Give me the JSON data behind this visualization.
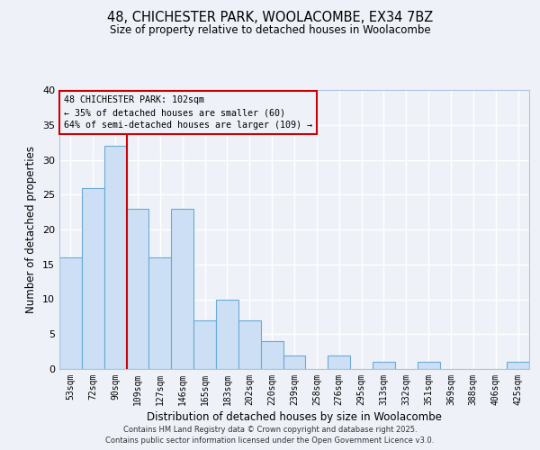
{
  "title": "48, CHICHESTER PARK, WOOLACOMBE, EX34 7BZ",
  "subtitle": "Size of property relative to detached houses in Woolacombe",
  "xlabel": "Distribution of detached houses by size in Woolacombe",
  "ylabel": "Number of detached properties",
  "bins": [
    "53sqm",
    "72sqm",
    "90sqm",
    "109sqm",
    "127sqm",
    "146sqm",
    "165sqm",
    "183sqm",
    "202sqm",
    "220sqm",
    "239sqm",
    "258sqm",
    "276sqm",
    "295sqm",
    "313sqm",
    "332sqm",
    "351sqm",
    "369sqm",
    "388sqm",
    "406sqm",
    "425sqm"
  ],
  "values": [
    16,
    26,
    32,
    23,
    16,
    23,
    7,
    10,
    7,
    4,
    2,
    0,
    2,
    0,
    1,
    0,
    1,
    0,
    0,
    0,
    1
  ],
  "bar_color": "#ccdff5",
  "bar_edge_color": "#6aaad4",
  "red_line_x": 2.5,
  "red_line_color": "#cc0000",
  "annotation_box_edge": "#cc0000",
  "ann_line0": "48 CHICHESTER PARK: 102sqm",
  "ann_line1": "← 35% of detached houses are smaller (60)",
  "ann_line2": "64% of semi-detached houses are larger (109) →",
  "ylim": [
    0,
    40
  ],
  "yticks": [
    0,
    5,
    10,
    15,
    20,
    25,
    30,
    35,
    40
  ],
  "bg_color": "#eef2f8",
  "grid_color": "#ffffff",
  "footer1": "Contains HM Land Registry data © Crown copyright and database right 2025.",
  "footer2": "Contains public sector information licensed under the Open Government Licence v3.0."
}
